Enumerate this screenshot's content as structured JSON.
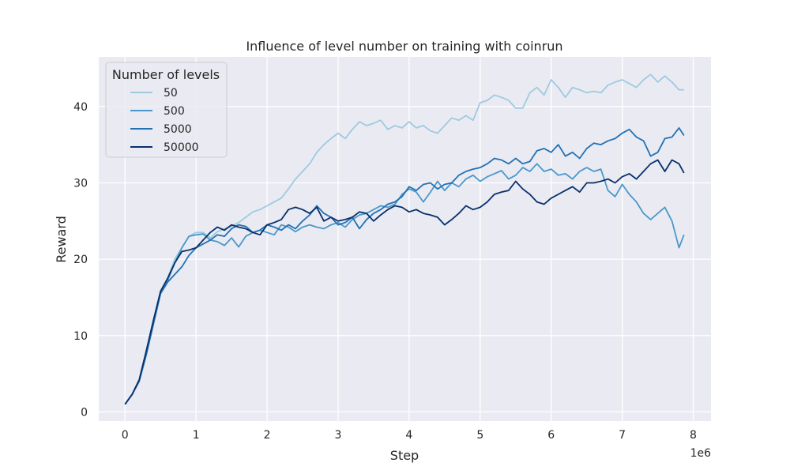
{
  "chart_data": {
    "type": "line",
    "title": "Influence of level number on training with coinrun",
    "xlabel": "Step",
    "ylabel": "Reward",
    "x_exponent_label": "1e6",
    "xlim": [
      -0.37,
      8.25
    ],
    "ylim": [
      -1.2,
      46.5
    ],
    "xticks": [
      0,
      1,
      2,
      3,
      4,
      5,
      6,
      7,
      8
    ],
    "xtick_labels": [
      "0",
      "1",
      "2",
      "3",
      "4",
      "5",
      "6",
      "7",
      "8"
    ],
    "yticks": [
      0,
      10,
      20,
      30,
      40
    ],
    "ytick_labels": [
      "0",
      "10",
      "20",
      "30",
      "40"
    ],
    "grid": true,
    "background_color": "#eaeaf2",
    "legend": {
      "title": "Number of levels",
      "position": "top-left"
    },
    "series": [
      {
        "name": "50",
        "color": "#9ecae1",
        "points": [
          [
            0,
            1
          ],
          [
            0.1,
            2.3
          ],
          [
            0.2,
            4
          ],
          [
            0.3,
            7.5
          ],
          [
            0.4,
            11.5
          ],
          [
            0.5,
            15.5
          ],
          [
            0.6,
            17.5
          ],
          [
            0.7,
            20
          ],
          [
            0.8,
            21.5
          ],
          [
            0.9,
            23
          ],
          [
            1.0,
            23.5
          ],
          [
            1.1,
            23.5
          ],
          [
            1.2,
            22.8
          ],
          [
            1.3,
            23.6
          ],
          [
            1.4,
            24
          ],
          [
            1.5,
            24.3
          ],
          [
            1.6,
            24.8
          ],
          [
            1.7,
            25.5
          ],
          [
            1.8,
            26.2
          ],
          [
            1.9,
            26.5
          ],
          [
            2.0,
            27
          ],
          [
            2.1,
            27.5
          ],
          [
            2.2,
            28
          ],
          [
            2.3,
            29.2
          ],
          [
            2.4,
            30.5
          ],
          [
            2.5,
            31.5
          ],
          [
            2.6,
            32.5
          ],
          [
            2.7,
            34
          ],
          [
            2.8,
            35
          ],
          [
            2.9,
            35.8
          ],
          [
            3.0,
            36.5
          ],
          [
            3.1,
            35.8
          ],
          [
            3.2,
            37
          ],
          [
            3.3,
            38
          ],
          [
            3.4,
            37.5
          ],
          [
            3.5,
            37.8
          ],
          [
            3.6,
            38.2
          ],
          [
            3.7,
            37
          ],
          [
            3.8,
            37.5
          ],
          [
            3.9,
            37.2
          ],
          [
            4.0,
            38
          ],
          [
            4.1,
            37.2
          ],
          [
            4.2,
            37.5
          ],
          [
            4.3,
            36.8
          ],
          [
            4.4,
            36.5
          ],
          [
            4.5,
            37.5
          ],
          [
            4.6,
            38.5
          ],
          [
            4.7,
            38.2
          ],
          [
            4.8,
            38.8
          ],
          [
            4.9,
            38.2
          ],
          [
            5.0,
            40.5
          ],
          [
            5.1,
            40.8
          ],
          [
            5.2,
            41.5
          ],
          [
            5.3,
            41.2
          ],
          [
            5.4,
            40.8
          ],
          [
            5.5,
            39.8
          ],
          [
            5.6,
            39.8
          ],
          [
            5.7,
            41.8
          ],
          [
            5.8,
            42.5
          ],
          [
            5.9,
            41.5
          ],
          [
            6.0,
            43.5
          ],
          [
            6.1,
            42.5
          ],
          [
            6.2,
            41.2
          ],
          [
            6.3,
            42.5
          ],
          [
            6.4,
            42.2
          ],
          [
            6.5,
            41.8
          ],
          [
            6.6,
            42
          ],
          [
            6.7,
            41.8
          ],
          [
            6.8,
            42.8
          ],
          [
            6.9,
            43.2
          ],
          [
            7.0,
            43.5
          ],
          [
            7.1,
            43
          ],
          [
            7.2,
            42.5
          ],
          [
            7.3,
            43.5
          ],
          [
            7.4,
            44.2
          ],
          [
            7.5,
            43.2
          ],
          [
            7.6,
            44
          ],
          [
            7.7,
            43.2
          ],
          [
            7.8,
            42.2
          ],
          [
            7.87,
            42.2
          ]
        ]
      },
      {
        "name": "500",
        "color": "#4a98c9",
        "points": [
          [
            0,
            1
          ],
          [
            0.1,
            2.3
          ],
          [
            0.2,
            4.2
          ],
          [
            0.3,
            8
          ],
          [
            0.4,
            12
          ],
          [
            0.5,
            15.5
          ],
          [
            0.6,
            17.2
          ],
          [
            0.7,
            19.5
          ],
          [
            0.8,
            21.5
          ],
          [
            0.9,
            23
          ],
          [
            1.0,
            23.2
          ],
          [
            1.1,
            23.3
          ],
          [
            1.2,
            22.5
          ],
          [
            1.3,
            22.3
          ],
          [
            1.4,
            21.8
          ],
          [
            1.5,
            22.8
          ],
          [
            1.6,
            21.6
          ],
          [
            1.7,
            23
          ],
          [
            1.8,
            23.5
          ],
          [
            1.9,
            23.8
          ],
          [
            2.0,
            23.5
          ],
          [
            2.1,
            23.2
          ],
          [
            2.2,
            24.5
          ],
          [
            2.3,
            24.2
          ],
          [
            2.4,
            23.6
          ],
          [
            2.5,
            24.2
          ],
          [
            2.6,
            24.5
          ],
          [
            2.7,
            24.2
          ],
          [
            2.8,
            24
          ],
          [
            2.9,
            24.5
          ],
          [
            3.0,
            24.8
          ],
          [
            3.1,
            24.2
          ],
          [
            3.2,
            25.2
          ],
          [
            3.3,
            25.8
          ],
          [
            3.4,
            26
          ],
          [
            3.5,
            26.5
          ],
          [
            3.6,
            27
          ],
          [
            3.7,
            26.8
          ],
          [
            3.8,
            27.2
          ],
          [
            3.9,
            28.5
          ],
          [
            4.0,
            29.2
          ],
          [
            4.1,
            28.8
          ],
          [
            4.2,
            27.5
          ],
          [
            4.3,
            28.8
          ],
          [
            4.4,
            30.2
          ],
          [
            4.5,
            29
          ],
          [
            4.6,
            30
          ],
          [
            4.7,
            29.5
          ],
          [
            4.8,
            30.5
          ],
          [
            4.9,
            31
          ],
          [
            5.0,
            30.2
          ],
          [
            5.1,
            30.8
          ],
          [
            5.2,
            31.2
          ],
          [
            5.3,
            31.6
          ],
          [
            5.4,
            30.5
          ],
          [
            5.5,
            31
          ],
          [
            5.6,
            32
          ],
          [
            5.7,
            31.5
          ],
          [
            5.8,
            32.5
          ],
          [
            5.9,
            31.5
          ],
          [
            6.0,
            31.8
          ],
          [
            6.1,
            31
          ],
          [
            6.2,
            31.2
          ],
          [
            6.3,
            30.5
          ],
          [
            6.4,
            31.5
          ],
          [
            6.5,
            32
          ],
          [
            6.6,
            31.5
          ],
          [
            6.7,
            31.8
          ],
          [
            6.8,
            29
          ],
          [
            6.9,
            28.2
          ],
          [
            7.0,
            29.8
          ],
          [
            7.1,
            28.5
          ],
          [
            7.2,
            27.5
          ],
          [
            7.3,
            26
          ],
          [
            7.4,
            25.2
          ],
          [
            7.5,
            26
          ],
          [
            7.6,
            26.8
          ],
          [
            7.7,
            25
          ],
          [
            7.8,
            21.5
          ],
          [
            7.87,
            23.2
          ]
        ]
      },
      {
        "name": "5000",
        "color": "#2171b5",
        "points": [
          [
            0,
            1
          ],
          [
            0.1,
            2.3
          ],
          [
            0.2,
            4
          ],
          [
            0.3,
            7.5
          ],
          [
            0.4,
            11.5
          ],
          [
            0.5,
            15.5
          ],
          [
            0.6,
            17
          ],
          [
            0.7,
            18
          ],
          [
            0.8,
            19
          ],
          [
            0.9,
            20.5
          ],
          [
            1.0,
            21.5
          ],
          [
            1.1,
            22
          ],
          [
            1.2,
            22.5
          ],
          [
            1.3,
            23.2
          ],
          [
            1.4,
            23
          ],
          [
            1.5,
            24
          ],
          [
            1.6,
            24.5
          ],
          [
            1.7,
            24.3
          ],
          [
            1.8,
            23.5
          ],
          [
            1.9,
            23.8
          ],
          [
            2.0,
            24.5
          ],
          [
            2.1,
            24.2
          ],
          [
            2.2,
            23.8
          ],
          [
            2.3,
            24.5
          ],
          [
            2.4,
            24
          ],
          [
            2.5,
            25
          ],
          [
            2.6,
            25.8
          ],
          [
            2.7,
            27
          ],
          [
            2.8,
            26
          ],
          [
            2.9,
            25.5
          ],
          [
            3.0,
            24.5
          ],
          [
            3.1,
            24.8
          ],
          [
            3.2,
            25.5
          ],
          [
            3.3,
            24
          ],
          [
            3.4,
            25.2
          ],
          [
            3.5,
            26
          ],
          [
            3.6,
            26.5
          ],
          [
            3.7,
            27.2
          ],
          [
            3.8,
            27.5
          ],
          [
            3.9,
            28.2
          ],
          [
            4.0,
            29.5
          ],
          [
            4.1,
            29
          ],
          [
            4.2,
            29.8
          ],
          [
            4.3,
            30
          ],
          [
            4.4,
            29.2
          ],
          [
            4.5,
            29.8
          ],
          [
            4.6,
            30
          ],
          [
            4.7,
            31
          ],
          [
            4.8,
            31.5
          ],
          [
            4.9,
            31.8
          ],
          [
            5.0,
            32
          ],
          [
            5.1,
            32.5
          ],
          [
            5.2,
            33.2
          ],
          [
            5.3,
            33
          ],
          [
            5.4,
            32.5
          ],
          [
            5.5,
            33.2
          ],
          [
            5.6,
            32.5
          ],
          [
            5.7,
            32.8
          ],
          [
            5.8,
            34.2
          ],
          [
            5.9,
            34.5
          ],
          [
            6.0,
            34
          ],
          [
            6.1,
            35
          ],
          [
            6.2,
            33.5
          ],
          [
            6.3,
            34
          ],
          [
            6.4,
            33.2
          ],
          [
            6.5,
            34.5
          ],
          [
            6.6,
            35.2
          ],
          [
            6.7,
            35
          ],
          [
            6.8,
            35.5
          ],
          [
            6.9,
            35.8
          ],
          [
            7.0,
            36.5
          ],
          [
            7.1,
            37
          ],
          [
            7.2,
            36
          ],
          [
            7.3,
            35.5
          ],
          [
            7.4,
            33.5
          ],
          [
            7.5,
            34
          ],
          [
            7.6,
            35.8
          ],
          [
            7.7,
            36
          ],
          [
            7.8,
            37.2
          ],
          [
            7.87,
            36.2
          ]
        ]
      },
      {
        "name": "50000",
        "color": "#08306b",
        "points": [
          [
            0,
            1
          ],
          [
            0.1,
            2.3
          ],
          [
            0.2,
            4.2
          ],
          [
            0.3,
            8
          ],
          [
            0.4,
            12
          ],
          [
            0.5,
            15.8
          ],
          [
            0.6,
            17.5
          ],
          [
            0.7,
            19.5
          ],
          [
            0.8,
            21
          ],
          [
            0.9,
            21.2
          ],
          [
            1.0,
            21.5
          ],
          [
            1.1,
            22.5
          ],
          [
            1.2,
            23.5
          ],
          [
            1.3,
            24.2
          ],
          [
            1.4,
            23.8
          ],
          [
            1.5,
            24.5
          ],
          [
            1.6,
            24.2
          ],
          [
            1.7,
            24
          ],
          [
            1.8,
            23.5
          ],
          [
            1.9,
            23.2
          ],
          [
            2.0,
            24.5
          ],
          [
            2.1,
            24.8
          ],
          [
            2.2,
            25.2
          ],
          [
            2.3,
            26.5
          ],
          [
            2.4,
            26.8
          ],
          [
            2.5,
            26.5
          ],
          [
            2.6,
            26
          ],
          [
            2.7,
            26.8
          ],
          [
            2.8,
            25
          ],
          [
            2.9,
            25.5
          ],
          [
            3.0,
            25
          ],
          [
            3.1,
            25.2
          ],
          [
            3.2,
            25.5
          ],
          [
            3.3,
            26.2
          ],
          [
            3.4,
            26
          ],
          [
            3.5,
            25
          ],
          [
            3.6,
            25.8
          ],
          [
            3.7,
            26.5
          ],
          [
            3.8,
            27
          ],
          [
            3.9,
            26.8
          ],
          [
            4.0,
            26.2
          ],
          [
            4.1,
            26.5
          ],
          [
            4.2,
            26
          ],
          [
            4.3,
            25.8
          ],
          [
            4.4,
            25.5
          ],
          [
            4.5,
            24.5
          ],
          [
            4.6,
            25.2
          ],
          [
            4.7,
            26
          ],
          [
            4.8,
            27
          ],
          [
            4.9,
            26.5
          ],
          [
            5.0,
            26.8
          ],
          [
            5.1,
            27.5
          ],
          [
            5.2,
            28.5
          ],
          [
            5.3,
            28.8
          ],
          [
            5.4,
            29
          ],
          [
            5.5,
            30.2
          ],
          [
            5.6,
            29.2
          ],
          [
            5.7,
            28.5
          ],
          [
            5.8,
            27.5
          ],
          [
            5.9,
            27.2
          ],
          [
            6.0,
            28
          ],
          [
            6.1,
            28.5
          ],
          [
            6.2,
            29
          ],
          [
            6.3,
            29.5
          ],
          [
            6.4,
            28.8
          ],
          [
            6.5,
            30
          ],
          [
            6.6,
            30
          ],
          [
            6.7,
            30.2
          ],
          [
            6.8,
            30.5
          ],
          [
            6.9,
            30
          ],
          [
            7.0,
            30.8
          ],
          [
            7.1,
            31.2
          ],
          [
            7.2,
            30.5
          ],
          [
            7.3,
            31.5
          ],
          [
            7.4,
            32.5
          ],
          [
            7.5,
            33
          ],
          [
            7.6,
            31.5
          ],
          [
            7.7,
            33
          ],
          [
            7.8,
            32.5
          ],
          [
            7.87,
            31.3
          ]
        ]
      }
    ]
  }
}
